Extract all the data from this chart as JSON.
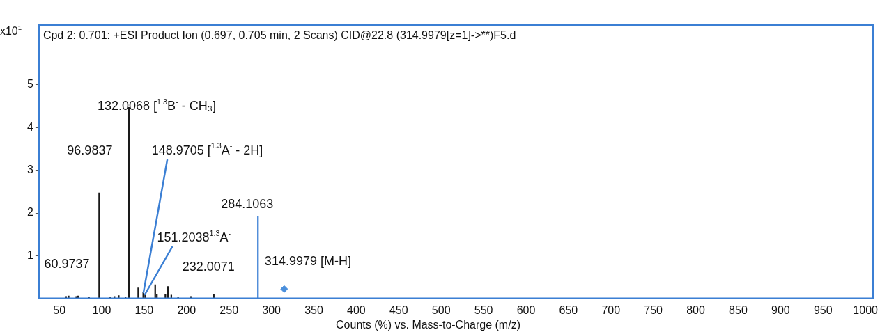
{
  "chart_data": {
    "type": "bar",
    "title": "Cpd 2: 0.701: +ESI Product Ion (0.697, 0.705 min, 2 Scans) CID@22.8 (314.9979[z=1]->**)F5.d",
    "xlabel": "Counts (%) vs. Mass-to-Charge (m/z)",
    "ylabel": "x10$^{1}$",
    "xlim": [
      26,
      1009
    ],
    "ylim": [
      0,
      6.4
    ],
    "xticks": [
      50,
      100,
      150,
      200,
      250,
      300,
      350,
      400,
      450,
      500,
      550,
      600,
      650,
      700,
      750,
      800,
      850,
      900,
      950,
      1000
    ],
    "yticks": [
      1,
      2,
      3,
      4,
      5
    ],
    "grid": false,
    "legend": false,
    "series": [
      {
        "x": [
          58,
          60.9737,
          70,
          72,
          85,
          96.9837,
          110,
          115,
          120,
          128,
          132.0068,
          143,
          148.9705,
          151.2038,
          163,
          165,
          175,
          178,
          182,
          190,
          205,
          232.0071,
          284.1063
        ],
        "values": [
          0.05,
          0.06,
          0.05,
          0.06,
          0.04,
          2.47,
          0.04,
          0.05,
          0.07,
          0.04,
          4.47,
          0.25,
          0.15,
          0.1,
          0.32,
          0.1,
          0.1,
          0.28,
          0.08,
          0.04,
          0.05,
          0.1,
          1.92
        ],
        "colors": [
          "#1a1a1a",
          "#1a1a1a",
          "#1a1a1a",
          "#1a1a1a",
          "#1a1a1a",
          "#1a1a1a",
          "#1a1a1a",
          "#1a1a1a",
          "#1a1a1a",
          "#1a1a1a",
          "#1a1a1a",
          "#1a1a1a",
          "#1a1a1a",
          "#1a1a1a",
          "#1a1a1a",
          "#1a1a1a",
          "#1a1a1a",
          "#1a1a1a",
          "#1a1a1a",
          "#1a1a1a",
          "#1a1a1a",
          "#1a1a1a",
          "#3b7fd4"
        ]
      },
      {
        "type": "scatter",
        "color": "#4a8fdc",
        "marker": "diamond",
        "x": [
          314.9979
        ],
        "values": [
          0.22
        ]
      }
    ],
    "annotations": [
      {
        "text": "60.9737",
        "x": 60.9737,
        "y": 0.06
      },
      {
        "text": "96.9837",
        "x": 96.9837,
        "y": 2.47
      },
      {
        "text": "132.0068 [$^{1.3}$B$^{-}$ - CH₃]",
        "x": 132.0068,
        "y": 4.47
      },
      {
        "text": "148.9705 [$^{1.3}$A$^{-}$ - 2H]",
        "x": 148.9705,
        "y": 0.15
      },
      {
        "text": "151.2038$^{1.3}$A$^{-}$",
        "x": 151.2038,
        "y": 0.1
      },
      {
        "text": "232.0071",
        "x": 232.0071,
        "y": 0.1
      },
      {
        "text": "284.1063",
        "x": 284.1063,
        "y": 1.92
      },
      {
        "text": "314.9979 [M-H]$^{-}$",
        "x": 314.9979,
        "y": 0.22
      }
    ]
  }
}
